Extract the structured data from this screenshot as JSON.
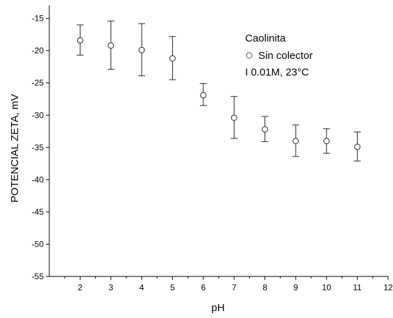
{
  "chart_data": {
    "type": "scatter",
    "xlabel": "pH",
    "ylabel": "POTENCIAL ZETA, mV",
    "xlim": [
      1,
      12
    ],
    "ylim": [
      -55,
      -13
    ],
    "x_ticks": [
      2,
      3,
      4,
      5,
      6,
      7,
      8,
      9,
      10,
      11,
      12
    ],
    "y_ticks": [
      -15,
      -20,
      -25,
      -30,
      -35,
      -40,
      -45,
      -50,
      -55
    ],
    "grid": false,
    "legend": {
      "placement": "top-right",
      "title": "Caolinita",
      "entries": [
        "Sin colector"
      ],
      "note": "I 0.01M, 23°C"
    },
    "series": [
      {
        "name": "Sin colector",
        "marker": "open-circle",
        "points": [
          {
            "x": 2,
            "y": -18.4,
            "err_low": -20.7,
            "err_high": -16.0
          },
          {
            "x": 3,
            "y": -19.2,
            "err_low": -22.9,
            "err_high": -15.4
          },
          {
            "x": 4,
            "y": -19.9,
            "err_low": -23.9,
            "err_high": -15.8
          },
          {
            "x": 5,
            "y": -21.2,
            "err_low": -24.5,
            "err_high": -17.8
          },
          {
            "x": 6,
            "y": -26.9,
            "err_low": -28.5,
            "err_high": -25.1
          },
          {
            "x": 7,
            "y": -30.4,
            "err_low": -33.6,
            "err_high": -27.1
          },
          {
            "x": 8,
            "y": -32.2,
            "err_low": -34.1,
            "err_high": -30.2
          },
          {
            "x": 9,
            "y": -34.0,
            "err_low": -36.4,
            "err_high": -31.5
          },
          {
            "x": 10,
            "y": -34.0,
            "err_low": -35.9,
            "err_high": -32.1
          },
          {
            "x": 11,
            "y": -34.9,
            "err_low": -37.1,
            "err_high": -32.6
          }
        ]
      }
    ]
  }
}
